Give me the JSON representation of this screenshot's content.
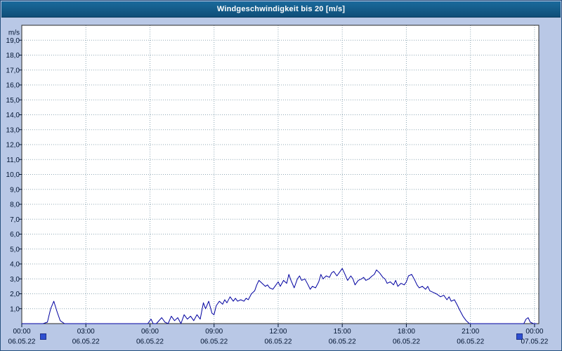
{
  "window": {
    "title": "Windgeschwindigkeit bis 20 [m/s]"
  },
  "colors": {
    "background": "#b9c8e6",
    "titlebar": "#0f4e78",
    "plot_bg": "#ffffff",
    "plot_border": "#2a2a2a",
    "grid": "#90a9b6",
    "line": "#0000a0",
    "axis_text": "#001330",
    "handle": "#2e4fd0"
  },
  "chart_data": {
    "type": "line",
    "title": "Windgeschwindigkeit bis 20 [m/s]",
    "ylabel": "m/s",
    "ylim": [
      0,
      20
    ],
    "ytick_step": 1,
    "ytick_labels": [
      "1,0",
      "2,0",
      "3,0",
      "4,0",
      "5,0",
      "6,0",
      "7,0",
      "8,0",
      "9,0",
      "10,0",
      "11,0",
      "12,0",
      "13,0",
      "14,0",
      "15,0",
      "16,0",
      "17,0",
      "18,0",
      "19,0"
    ],
    "xlim_hours": [
      0,
      24.2
    ],
    "xticks_hours": [
      0,
      3,
      6,
      9,
      12,
      15,
      18,
      21,
      24
    ],
    "xtick_time_labels": [
      "00:00",
      "03:00",
      "06:00",
      "09:00",
      "12:00",
      "15:00",
      "18:00",
      "21:00",
      "00:00"
    ],
    "xtick_date_labels": [
      "06.05.22",
      "06.05.22",
      "06.05.22",
      "06.05.22",
      "06.05.22",
      "06.05.22",
      "06.05.22",
      "06.05.22",
      "07.05.22"
    ],
    "grid": true,
    "legend": "none",
    "series": [
      {
        "x": [
          0,
          0.25,
          0.5,
          0.75,
          1,
          1.2,
          1.35,
          1.5,
          1.65,
          1.8,
          2,
          2.5,
          3,
          3.5,
          4,
          4.5,
          5,
          5.5,
          5.9,
          6.05,
          6.15,
          6.3,
          6.55,
          6.7,
          6.85,
          7,
          7.15,
          7.3,
          7.45,
          7.6,
          7.75,
          7.9,
          8.05,
          8.2,
          8.35,
          8.5,
          8.6,
          8.75,
          8.9,
          9,
          9.1,
          9.25,
          9.4,
          9.5,
          9.6,
          9.75,
          9.9,
          10,
          10.1,
          10.25,
          10.4,
          10.5,
          10.6,
          10.75,
          10.9,
          11,
          11.1,
          11.25,
          11.4,
          11.5,
          11.6,
          11.75,
          11.9,
          12,
          12.1,
          12.25,
          12.4,
          12.5,
          12.6,
          12.75,
          12.9,
          13,
          13.1,
          13.25,
          13.4,
          13.5,
          13.6,
          13.75,
          13.9,
          14,
          14.1,
          14.25,
          14.4,
          14.5,
          14.6,
          14.75,
          14.9,
          15,
          15.1,
          15.25,
          15.4,
          15.5,
          15.6,
          15.75,
          15.9,
          16,
          16.1,
          16.25,
          16.4,
          16.5,
          16.6,
          16.75,
          16.9,
          17,
          17.1,
          17.25,
          17.4,
          17.5,
          17.6,
          17.75,
          17.9,
          18,
          18.1,
          18.25,
          18.4,
          18.5,
          18.6,
          18.75,
          18.9,
          19,
          19.1,
          19.25,
          19.4,
          19.5,
          19.6,
          19.75,
          19.9,
          20,
          20.1,
          20.25,
          20.4,
          20.5,
          20.65,
          20.8,
          20.95,
          21.1,
          21.5,
          22,
          22.5,
          23,
          23.3,
          23.5,
          23.6,
          23.7,
          23.8,
          23.95,
          24.1
        ],
        "y": [
          0,
          0,
          0,
          0,
          0,
          0.1,
          1.0,
          1.5,
          0.8,
          0.2,
          0,
          0,
          0,
          0,
          0,
          0,
          0,
          0,
          0,
          0.3,
          0,
          0,
          0.4,
          0.1,
          0,
          0.5,
          0.2,
          0.4,
          0,
          0.6,
          0.3,
          0.5,
          0.2,
          0.6,
          0.3,
          1.4,
          1.0,
          1.5,
          0.7,
          0.6,
          1.2,
          1.5,
          1.3,
          1.6,
          1.4,
          1.8,
          1.5,
          1.7,
          1.5,
          1.6,
          1.5,
          1.7,
          1.6,
          2.0,
          2.2,
          2.6,
          2.9,
          2.7,
          2.5,
          2.6,
          2.4,
          2.3,
          2.6,
          2.8,
          2.5,
          2.9,
          2.7,
          3.3,
          2.9,
          2.4,
          3.0,
          3.2,
          2.9,
          3.0,
          2.6,
          2.3,
          2.5,
          2.4,
          2.8,
          3.3,
          3.0,
          3.2,
          3.1,
          3.4,
          3.5,
          3.2,
          3.5,
          3.7,
          3.4,
          2.9,
          3.2,
          3.0,
          2.6,
          2.9,
          3.0,
          3.1,
          2.9,
          3.0,
          3.2,
          3.3,
          3.6,
          3.4,
          3.1,
          3.0,
          2.7,
          2.8,
          2.6,
          2.9,
          2.5,
          2.7,
          2.6,
          2.8,
          3.2,
          3.3,
          2.9,
          2.6,
          2.4,
          2.5,
          2.3,
          2.5,
          2.2,
          2.1,
          2.0,
          1.9,
          1.8,
          1.9,
          1.6,
          1.8,
          1.5,
          1.6,
          1.2,
          0.9,
          0.5,
          0.2,
          0,
          0,
          0,
          0,
          0,
          0,
          0,
          0,
          0.3,
          0.4,
          0.1,
          0,
          0
        ]
      }
    ]
  }
}
